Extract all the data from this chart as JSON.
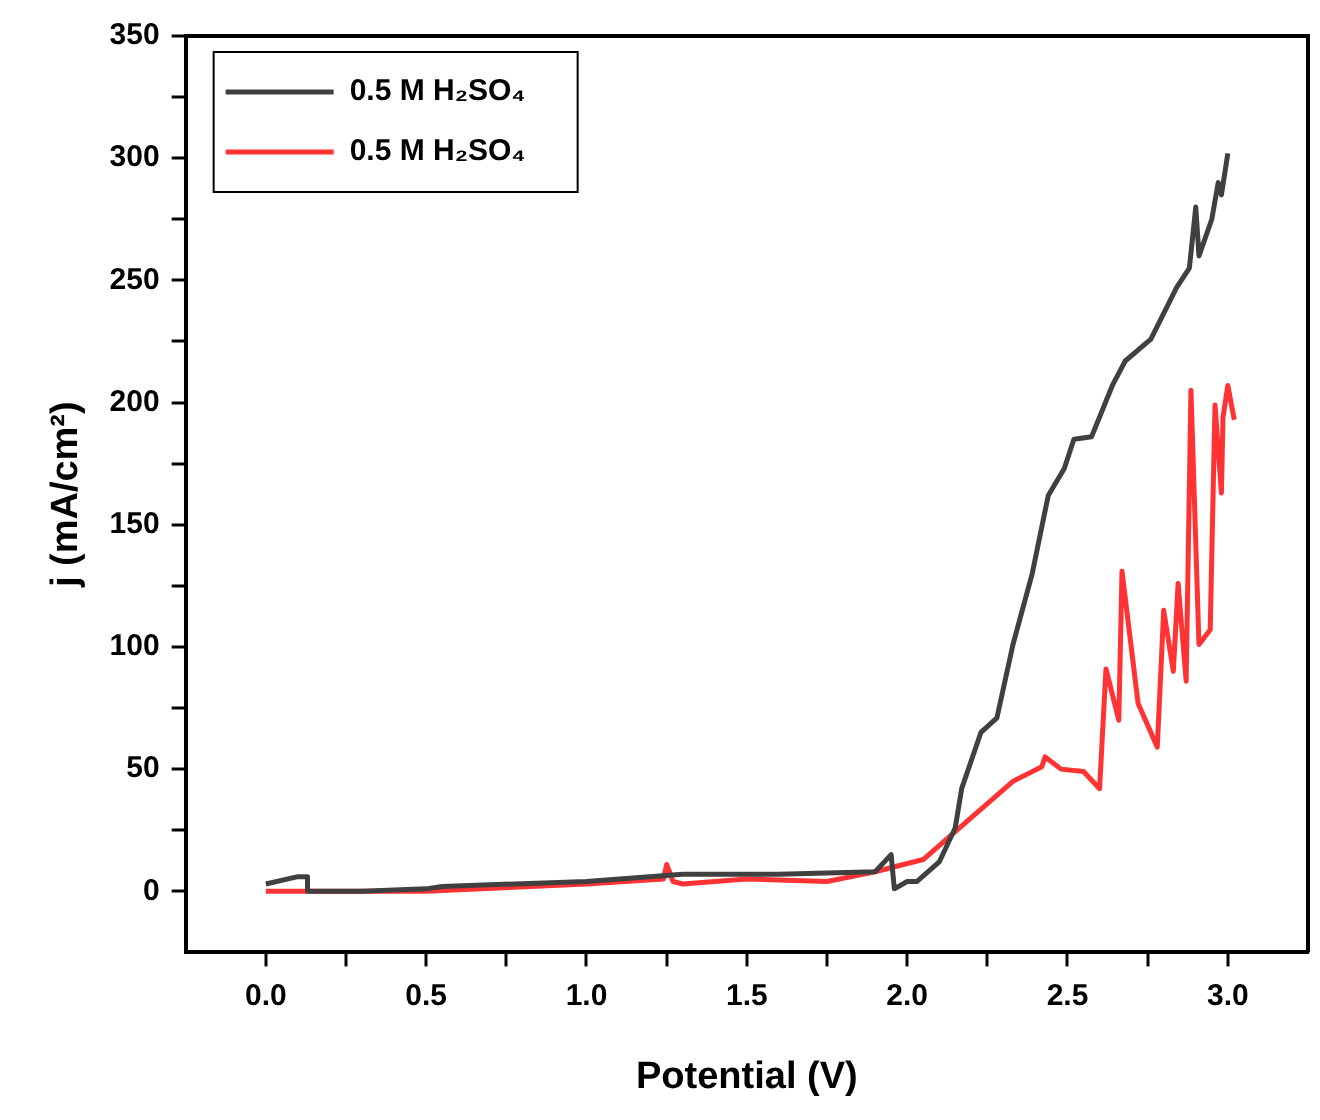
{
  "chart_data": {
    "type": "line",
    "xlabel": "Potential (V)",
    "ylabel": "j (mA/cm²)",
    "xlim": [
      -0.25,
      3.25
    ],
    "ylim": [
      -25,
      350
    ],
    "xticks": [
      {
        "value": 0,
        "label": "0.0"
      },
      {
        "value": 0.25,
        "label": null
      },
      {
        "value": 0.5,
        "label": "0.5"
      },
      {
        "value": 0.75,
        "label": null
      },
      {
        "value": 1,
        "label": "1.0"
      },
      {
        "value": 1.25,
        "label": null
      },
      {
        "value": 1.5,
        "label": "1.5"
      },
      {
        "value": 1.75,
        "label": null
      },
      {
        "value": 2,
        "label": "2.0"
      },
      {
        "value": 2.25,
        "label": null
      },
      {
        "value": 2.5,
        "label": "2.5"
      },
      {
        "value": 2.75,
        "label": null
      },
      {
        "value": 3,
        "label": "3.0"
      }
    ],
    "yticks": [
      0,
      {
        "value": 25,
        "label": null
      },
      50,
      {
        "value": 75,
        "label": null
      },
      100,
      {
        "value": 125,
        "label": null
      },
      150,
      {
        "value": 175,
        "label": null
      },
      200,
      {
        "value": 225,
        "label": null
      },
      250,
      {
        "value": 275,
        "label": null
      },
      300,
      {
        "value": 325,
        "label": null
      },
      350
    ],
    "grid": false,
    "legend": "top left",
    "marker": "none",
    "line_style": "solid",
    "series": [
      {
        "name": "0.5 M H₂SO₄",
        "color": "#404040",
        "x": [
          0,
          0.1,
          0.13,
          0.13,
          0.3,
          0.5,
          0.55,
          1.0,
          1.3,
          1.6,
          1.9,
          1.95,
          1.96,
          2.0,
          2.03,
          2.1,
          2.15,
          2.17,
          2.23,
          2.28,
          2.33,
          2.39,
          2.44,
          2.49,
          2.52,
          2.575,
          2.64,
          2.68,
          2.76,
          2.84,
          2.88,
          2.9,
          2.91,
          2.95,
          2.97,
          2.98,
          3.0
        ],
        "values": [
          3,
          6,
          6,
          0,
          0,
          1,
          2,
          4,
          7,
          7,
          8,
          15,
          1,
          4,
          4,
          12,
          26,
          42,
          65,
          71,
          101,
          130,
          162,
          173,
          185,
          186,
          207,
          217,
          226,
          247,
          255,
          280,
          260,
          275,
          290,
          285,
          302
        ]
      },
      {
        "name": "0.5 M H₂SO₄",
        "color": "#ff3333",
        "x": [
          0,
          0.5,
          1.0,
          1.24,
          1.25,
          1.27,
          1.3,
          1.5,
          1.75,
          1.9,
          2.05,
          2.19,
          2.33,
          2.42,
          2.43,
          2.48,
          2.55,
          2.6,
          2.62,
          2.66,
          2.67,
          2.72,
          2.78,
          2.8,
          2.83,
          2.845,
          2.87,
          2.885,
          2.91,
          2.945,
          2.96,
          2.98,
          2.985,
          3.0,
          3.02
        ],
        "values": [
          0,
          0,
          3,
          5,
          11,
          4,
          3,
          5,
          4,
          8,
          13,
          29,
          45,
          51,
          55,
          50,
          49,
          42,
          91,
          70,
          131,
          77,
          59,
          115,
          90,
          126,
          86,
          205,
          101,
          107,
          199,
          163,
          194,
          207,
          193
        ]
      }
    ]
  }
}
